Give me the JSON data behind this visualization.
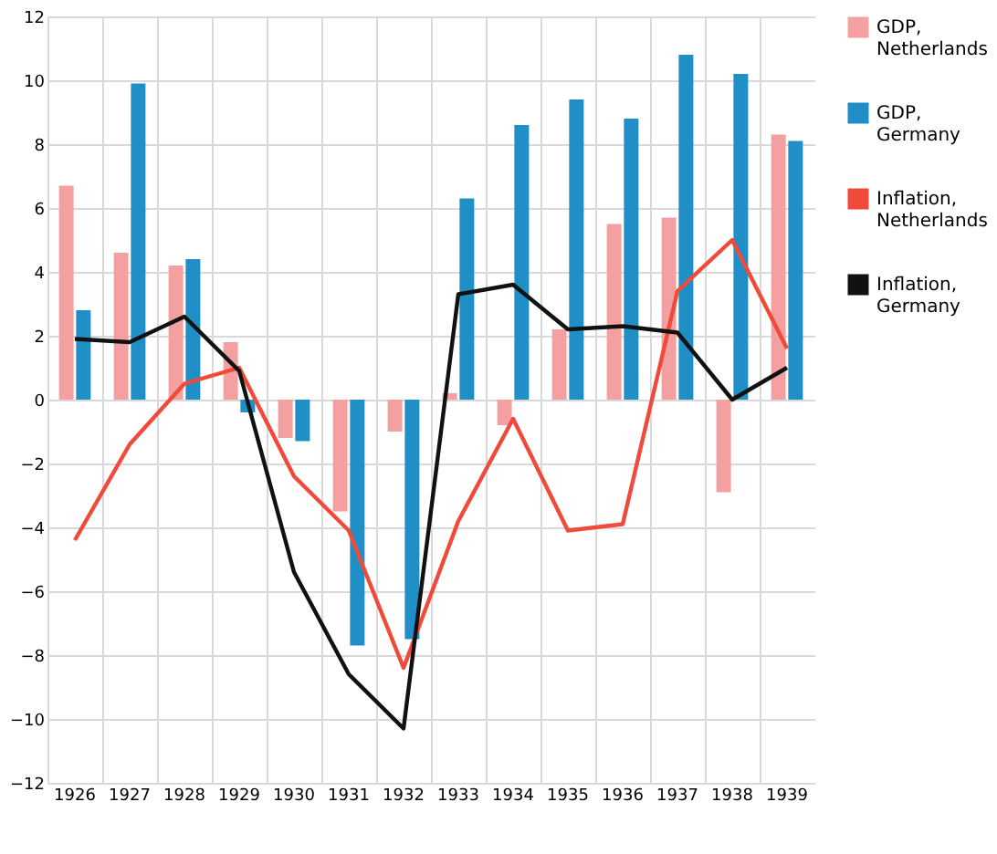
{
  "chart_data": {
    "type": "bar",
    "categories": [
      "1926",
      "1927",
      "1928",
      "1929",
      "1930",
      "1931",
      "1932",
      "1933",
      "1934",
      "1935",
      "1936",
      "1937",
      "1938",
      "1939"
    ],
    "series": [
      {
        "name": "GDP, Netherlands",
        "color": "#f4a0a0",
        "values": [
          6.7,
          4.6,
          4.2,
          1.8,
          -1.2,
          -3.5,
          -1.0,
          0.2,
          -0.8,
          2.2,
          5.5,
          5.7,
          -2.9,
          8.3
        ]
      },
      {
        "name": "GDP, Germany",
        "color": "#1f8fc6",
        "values": [
          2.8,
          9.9,
          4.4,
          -0.4,
          -1.3,
          -7.7,
          -7.5,
          6.3,
          8.6,
          9.4,
          8.8,
          10.8,
          10.2,
          8.1
        ]
      },
      {
        "name": "Inflation, Netherlands",
        "type": "line",
        "color": "#f04a3a",
        "values": [
          -4.4,
          -1.4,
          0.5,
          1.0,
          -2.4,
          -4.1,
          -8.4,
          -3.8,
          -0.6,
          -4.1,
          -3.9,
          3.4,
          5.0,
          1.6
        ]
      },
      {
        "name": "Inflation, Germany",
        "type": "line",
        "color": "#111111",
        "values": [
          1.9,
          1.8,
          2.6,
          0.9,
          -5.4,
          -8.6,
          -10.3,
          3.3,
          3.6,
          2.2,
          2.3,
          2.1,
          0.0,
          1.0
        ]
      }
    ],
    "ylim": [
      -12,
      12
    ],
    "yticks": [
      -12,
      -10,
      -8,
      -6,
      -4,
      -2,
      0,
      2,
      4,
      6,
      8,
      10,
      12
    ],
    "grid": true,
    "legend": "right"
  }
}
